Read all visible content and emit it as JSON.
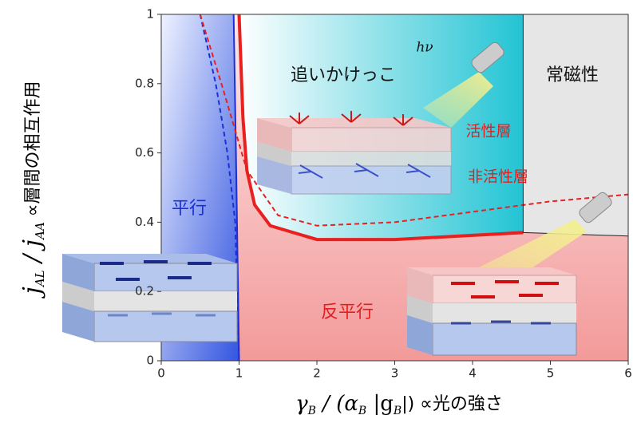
{
  "chart_data": {
    "type": "line",
    "xlim": [
      0,
      6
    ],
    "xticks": [
      0,
      1,
      2,
      3,
      4,
      5,
      6
    ],
    "ylim": [
      0,
      1
    ],
    "yticks": [
      0,
      0.2,
      0.4,
      0.6,
      0.8,
      1
    ],
    "ylabel_parts": [
      "j",
      "AL",
      " / j",
      "AA",
      " ∝層間の相互作用"
    ],
    "xlabel_parts": [
      "γ",
      "B",
      " / (α",
      "B",
      " |g",
      "B",
      "|) ∝光の強さ"
    ],
    "annotations": [
      "追いかけっこ",
      "常磁性",
      "平行",
      "反平行",
      "活性層",
      "非活性層",
      "hν"
    ],
    "series": [
      {
        "color": "#1a2fd8",
        "dash": false,
        "x": [
          0.93,
          0.96,
          0.98,
          1.0
        ],
        "values": [
          1,
          0.6,
          0.3,
          0
        ]
      },
      {
        "color": "#1a2fd8",
        "dash": true,
        "x": [
          0.5,
          0.7,
          0.85,
          0.95,
          1.0
        ],
        "values": [
          1,
          0.8,
          0.6,
          0.4,
          0
        ]
      },
      {
        "color": "#e82020",
        "dash": false,
        "x": [
          1.0,
          1.05,
          1.1,
          1.2,
          1.4,
          2.0,
          3.0,
          4.65
        ],
        "values": [
          1,
          0.7,
          0.55,
          0.45,
          0.39,
          0.35,
          0.35,
          0.37
        ]
      },
      {
        "color": "#e82020",
        "dash": true,
        "x": [
          0.5,
          0.8,
          1.1,
          1.5,
          2,
          3,
          4,
          5,
          6
        ],
        "values": [
          1,
          0.78,
          0.55,
          0.42,
          0.39,
          0.4,
          0.43,
          0.46,
          0.48
        ]
      },
      {
        "color": "#222222",
        "dash": false,
        "x": [
          4.65,
          4.65,
          6
        ],
        "values": [
          1,
          0.37,
          0.36
        ]
      }
    ]
  }
}
